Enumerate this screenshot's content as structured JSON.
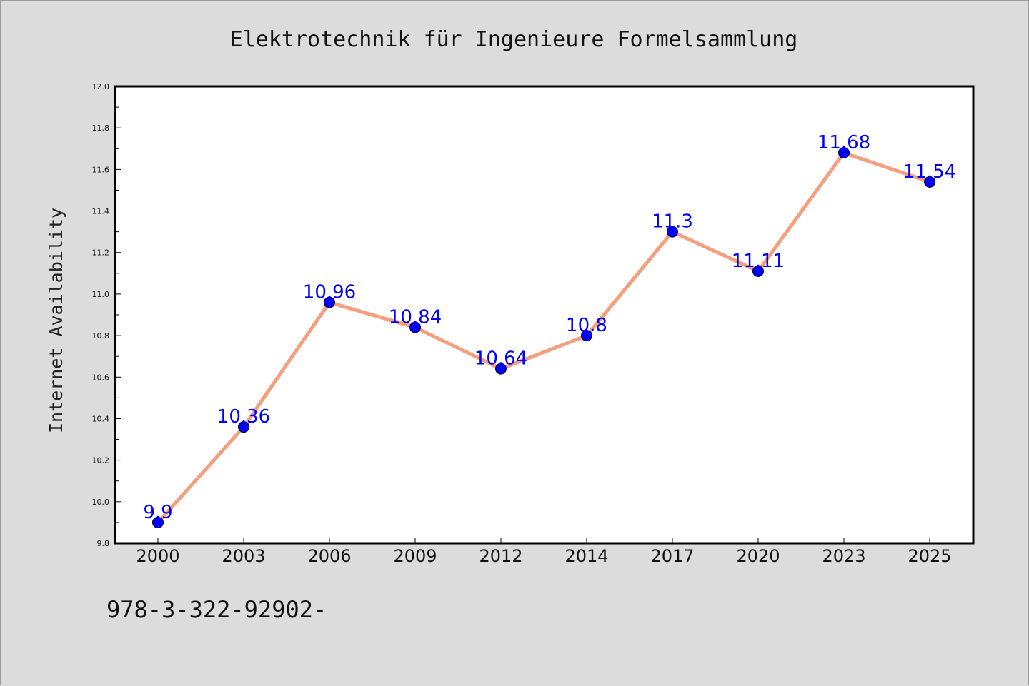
{
  "chart_data": {
    "type": "line",
    "title": "Elektrotechnik für Ingenieure Formelsammlung",
    "ylabel": "Internet Availability",
    "xlabel": "",
    "categories": [
      "2000",
      "2003",
      "2006",
      "2009",
      "2012",
      "2014",
      "2017",
      "2020",
      "2023",
      "2025"
    ],
    "values": [
      9.9,
      10.36,
      10.96,
      10.84,
      10.64,
      10.8,
      11.3,
      11.11,
      11.68,
      11.54
    ],
    "data_labels": [
      "9.9",
      "10.36",
      "10.96",
      "10.84",
      "10.64",
      "10.8",
      "11.3",
      "11.11",
      "11.68",
      "11.54"
    ],
    "ylim": [
      9.8,
      12.0
    ],
    "yticks": [
      "9.8",
      "10.0",
      "10.2",
      "10.4",
      "10.6",
      "10.8",
      "11.0",
      "11.2",
      "11.4",
      "11.6",
      "11.8",
      "12.0"
    ],
    "grid": false,
    "legend": "none",
    "colors": {
      "line": "#f4a07e",
      "marker": "#0000ff",
      "label": "#0000ff",
      "background": "#dcdcdc",
      "plot_background": "#ffffff"
    }
  },
  "footer": {
    "isbn": "978-3-322-92902-"
  }
}
